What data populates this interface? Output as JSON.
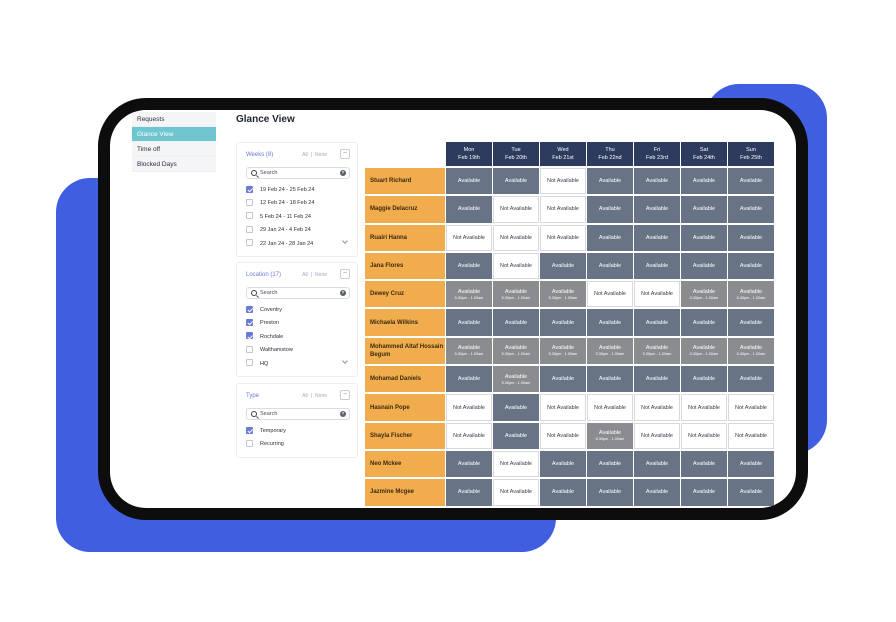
{
  "colors": {
    "backdrop": "#3f5fe0",
    "device_frame": "#0d0d0d",
    "nav_active": "#6fc6d1",
    "accent": "#6b7ad8",
    "header": "#2d3b5e",
    "employee": "#f1ad4d",
    "available": "#687486",
    "shift": "#8a8c90",
    "not_available": "#ffffff"
  },
  "nav": {
    "items": [
      {
        "label": "Requests",
        "active": false
      },
      {
        "label": "Glance View",
        "active": true
      },
      {
        "label": "Time off",
        "active": false
      },
      {
        "label": "Blocked Days",
        "active": false
      }
    ]
  },
  "page": {
    "title": "Glance View"
  },
  "filters": [
    {
      "title": "Weeks (8)",
      "all_label": "All",
      "separator": "|",
      "none_label": "None",
      "search_placeholder": "Search",
      "options": [
        {
          "label": "19 Feb 24 - 25 Feb 24",
          "checked": true
        },
        {
          "label": "12 Feb 24 - 18 Feb 24",
          "checked": false
        },
        {
          "label": "5 Feb 24 - 11 Feb 24",
          "checked": false
        },
        {
          "label": "29 Jan 24 - 4 Feb 24",
          "checked": false
        },
        {
          "label": "22 Jan 24 - 28 Jan 24",
          "checked": false
        }
      ],
      "expandable": true
    },
    {
      "title": "Location (17)",
      "all_label": "All",
      "separator": "|",
      "none_label": "None",
      "search_placeholder": "Search",
      "options": [
        {
          "label": "Coventry",
          "checked": true
        },
        {
          "label": "Preston",
          "checked": true
        },
        {
          "label": "Rochdale",
          "checked": true
        },
        {
          "label": "Walthamstow",
          "checked": false
        },
        {
          "label": "HQ",
          "checked": false
        }
      ],
      "expandable": true
    },
    {
      "title": "Type",
      "all_label": "All",
      "separator": "|",
      "none_label": "None",
      "search_placeholder": "Search",
      "options": [
        {
          "label": "Temporary",
          "checked": true
        },
        {
          "label": "Recurring",
          "checked": false
        }
      ],
      "expandable": false
    }
  ],
  "schedule": {
    "days": [
      {
        "day": "Mon",
        "date": "Feb 19th"
      },
      {
        "day": "Tue",
        "date": "Feb 20th"
      },
      {
        "day": "Wed",
        "date": "Feb 21st"
      },
      {
        "day": "Thu",
        "date": "Feb 22nd"
      },
      {
        "day": "Fri",
        "date": "Feb 23rd"
      },
      {
        "day": "Sat",
        "date": "Feb 24th"
      },
      {
        "day": "Sun",
        "date": "Feb 25th"
      }
    ],
    "status_labels": {
      "A": "Available",
      "N": "Not Available"
    },
    "time_label": "5.30pm - 1.00am",
    "employees": [
      {
        "name": "Stuart Richard",
        "cells": [
          "A",
          "A",
          "N",
          "A",
          "A",
          "A",
          "A"
        ]
      },
      {
        "name": "Maggie Delacruz",
        "cells": [
          "A",
          "N",
          "N",
          "A",
          "A",
          "A",
          "A"
        ]
      },
      {
        "name": "Ruairi Hanna",
        "cells": [
          "N",
          "N",
          "N",
          "A",
          "A",
          "A",
          "A"
        ]
      },
      {
        "name": "Jana Flores",
        "cells": [
          "A",
          "N",
          "A",
          "A",
          "A",
          "A",
          "A"
        ]
      },
      {
        "name": "Dewey Cruz",
        "cells": [
          "T",
          "T",
          "T",
          "N",
          "N",
          "T",
          "T"
        ]
      },
      {
        "name": "Michaela Wilkins",
        "cells": [
          "A",
          "A",
          "A",
          "A",
          "A",
          "A",
          "A"
        ]
      },
      {
        "name": "Mohammed Altaf Hossain Begum",
        "cells": [
          "T",
          "T",
          "T",
          "T",
          "T",
          "T",
          "T"
        ]
      },
      {
        "name": "Mohamad Daniels",
        "cells": [
          "A",
          "T",
          "A",
          "A",
          "A",
          "A",
          "A"
        ]
      },
      {
        "name": "Hasnain Pope",
        "cells": [
          "N",
          "A",
          "N",
          "N",
          "N",
          "N",
          "N"
        ]
      },
      {
        "name": "Shayla Fischer",
        "cells": [
          "N",
          "A",
          "N",
          "T",
          "N",
          "N",
          "N"
        ]
      },
      {
        "name": "Neo Mckee",
        "cells": [
          "A",
          "N",
          "A",
          "A",
          "A",
          "A",
          "A"
        ]
      },
      {
        "name": "Jazmine Mcgee",
        "cells": [
          "A",
          "N",
          "A",
          "A",
          "A",
          "A",
          "A"
        ]
      }
    ]
  }
}
